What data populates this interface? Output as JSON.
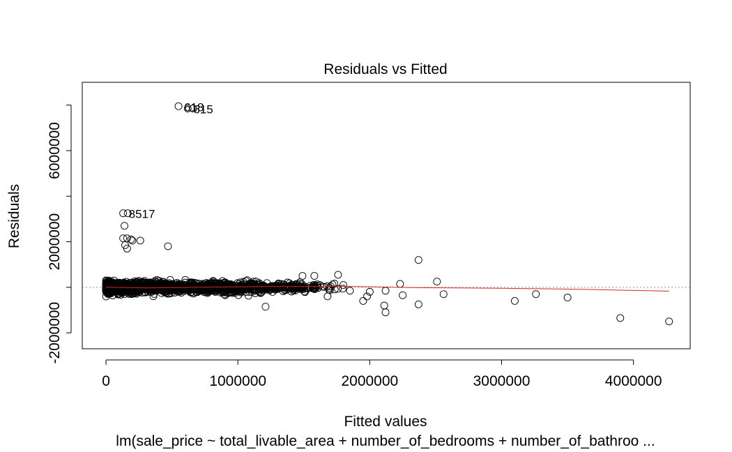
{
  "chart_data": {
    "type": "scatter",
    "title": "Residuals vs Fitted",
    "xlabel": "Fitted values",
    "ylabel": "Residuals",
    "subtitle": "lm(sale_price ~ total_livable_area + number_of_bedrooms + number_of_bathroo ...",
    "xlim": [
      -180000,
      4430000
    ],
    "ylim": [
      -2700000,
      9000000
    ],
    "x_ticks": [
      0,
      1000000,
      2000000,
      3000000,
      4000000
    ],
    "x_tick_labels": [
      "0",
      "1000000",
      "2000000",
      "3000000",
      "4000000"
    ],
    "y_ticks": [
      -2000000,
      0,
      2000000,
      4000000,
      6000000,
      8000000
    ],
    "y_tick_labels": [
      "-2000000",
      "",
      "2000000",
      "",
      "6000000",
      ""
    ],
    "point_labels": [
      {
        "text": "618",
        "x": 550000,
        "y": 7950000
      },
      {
        "text": "615",
        "x": 620000,
        "y": 7850000
      },
      {
        "text": "8517",
        "x": 130000,
        "y": 3250000
      }
    ],
    "outliers": [
      {
        "x": 550000,
        "y": 7950000
      },
      {
        "x": 620000,
        "y": 7850000
      },
      {
        "x": 660000,
        "y": 7850000
      },
      {
        "x": 130000,
        "y": 3250000
      },
      {
        "x": 165000,
        "y": 3250000
      },
      {
        "x": 140000,
        "y": 2700000
      },
      {
        "x": 130000,
        "y": 2150000
      },
      {
        "x": 160000,
        "y": 2150000
      },
      {
        "x": 190000,
        "y": 2100000
      },
      {
        "x": 260000,
        "y": 2050000
      },
      {
        "x": 200000,
        "y": 2050000
      },
      {
        "x": 145000,
        "y": 1850000
      },
      {
        "x": 160000,
        "y": 1700000
      },
      {
        "x": 470000,
        "y": 1800000
      },
      {
        "x": 2370000,
        "y": 1200000
      },
      {
        "x": 2510000,
        "y": 250000
      },
      {
        "x": 2230000,
        "y": 150000
      },
      {
        "x": 2120000,
        "y": -150000
      },
      {
        "x": 2000000,
        "y": -200000
      },
      {
        "x": 1980000,
        "y": -400000
      },
      {
        "x": 1950000,
        "y": -600000
      },
      {
        "x": 2110000,
        "y": -800000
      },
      {
        "x": 2120000,
        "y": -1100000
      },
      {
        "x": 2370000,
        "y": -750000
      },
      {
        "x": 2560000,
        "y": -300000
      },
      {
        "x": 2250000,
        "y": -350000
      },
      {
        "x": 3100000,
        "y": -600000
      },
      {
        "x": 3260000,
        "y": -300000
      },
      {
        "x": 3500000,
        "y": -450000
      },
      {
        "x": 3900000,
        "y": -1350000
      },
      {
        "x": 4270000,
        "y": -1500000
      },
      {
        "x": 1210000,
        "y": -850000
      },
      {
        "x": 1760000,
        "y": 550000
      },
      {
        "x": 1580000,
        "y": 500000
      },
      {
        "x": 1490000,
        "y": 500000
      },
      {
        "x": 1680000,
        "y": -400000
      },
      {
        "x": 1850000,
        "y": -150000
      },
      {
        "x": 1800000,
        "y": 100000
      }
    ],
    "cloud": {
      "x_min": 0,
      "x_max": 1850000,
      "resid_spread": 500000
    },
    "smooth_line": {
      "color": "#d62728",
      "x": [
        0,
        300000,
        700000,
        1200000,
        1800000,
        2400000,
        3000000,
        3600000,
        4270000
      ],
      "y": [
        0,
        -30000,
        0,
        30000,
        40000,
        -20000,
        -40000,
        -90000,
        -170000
      ]
    },
    "zero_line": {
      "y": 0,
      "style": "dotted",
      "color": "#999999"
    },
    "grid": false
  }
}
